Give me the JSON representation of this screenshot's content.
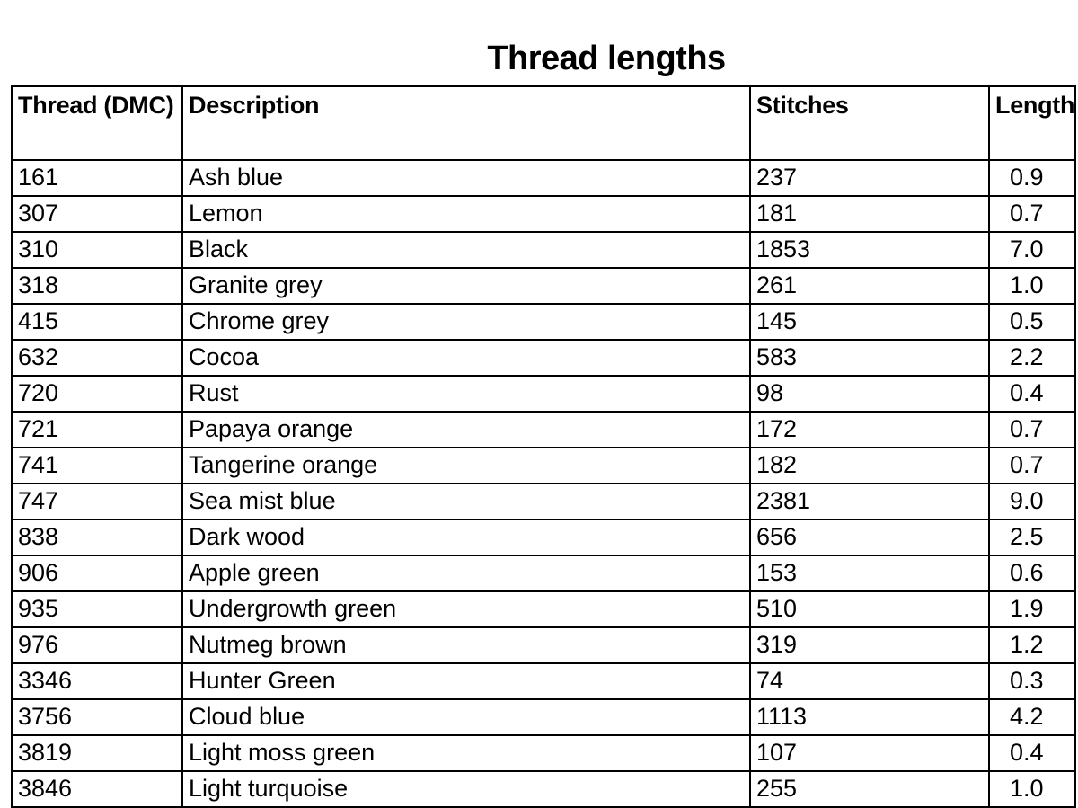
{
  "title": "Thread lengths",
  "columns": [
    "Thread (DMC)",
    "Description",
    "Stitches",
    "Length"
  ],
  "rows": [
    [
      "161",
      "Ash blue",
      "237",
      "0.9"
    ],
    [
      "307",
      "Lemon",
      "181",
      "0.7"
    ],
    [
      "310",
      "Black",
      "1853",
      "7.0"
    ],
    [
      "318",
      "Granite grey",
      "261",
      "1.0"
    ],
    [
      "415",
      "Chrome grey",
      "145",
      "0.5"
    ],
    [
      "632",
      "Cocoa",
      "583",
      "2.2"
    ],
    [
      "720",
      "Rust",
      "98",
      "0.4"
    ],
    [
      "721",
      "Papaya orange",
      "172",
      "0.7"
    ],
    [
      "741",
      "Tangerine orange",
      "182",
      "0.7"
    ],
    [
      "747",
      "Sea mist blue",
      "2381",
      "9.0"
    ],
    [
      "838",
      "Dark wood",
      "656",
      "2.5"
    ],
    [
      "906",
      "Apple green",
      "153",
      "0.6"
    ],
    [
      "935",
      "Undergrowth green",
      "510",
      "1.9"
    ],
    [
      "976",
      "Nutmeg brown",
      "319",
      "1.2"
    ],
    [
      "3346",
      "Hunter Green",
      "74",
      "0.3"
    ],
    [
      "3756",
      "Cloud blue",
      "1113",
      "4.2"
    ],
    [
      "3819",
      "Light moss green",
      "107",
      "0.4"
    ],
    [
      "3846",
      "Light turquoise",
      "255",
      "1.0"
    ]
  ]
}
